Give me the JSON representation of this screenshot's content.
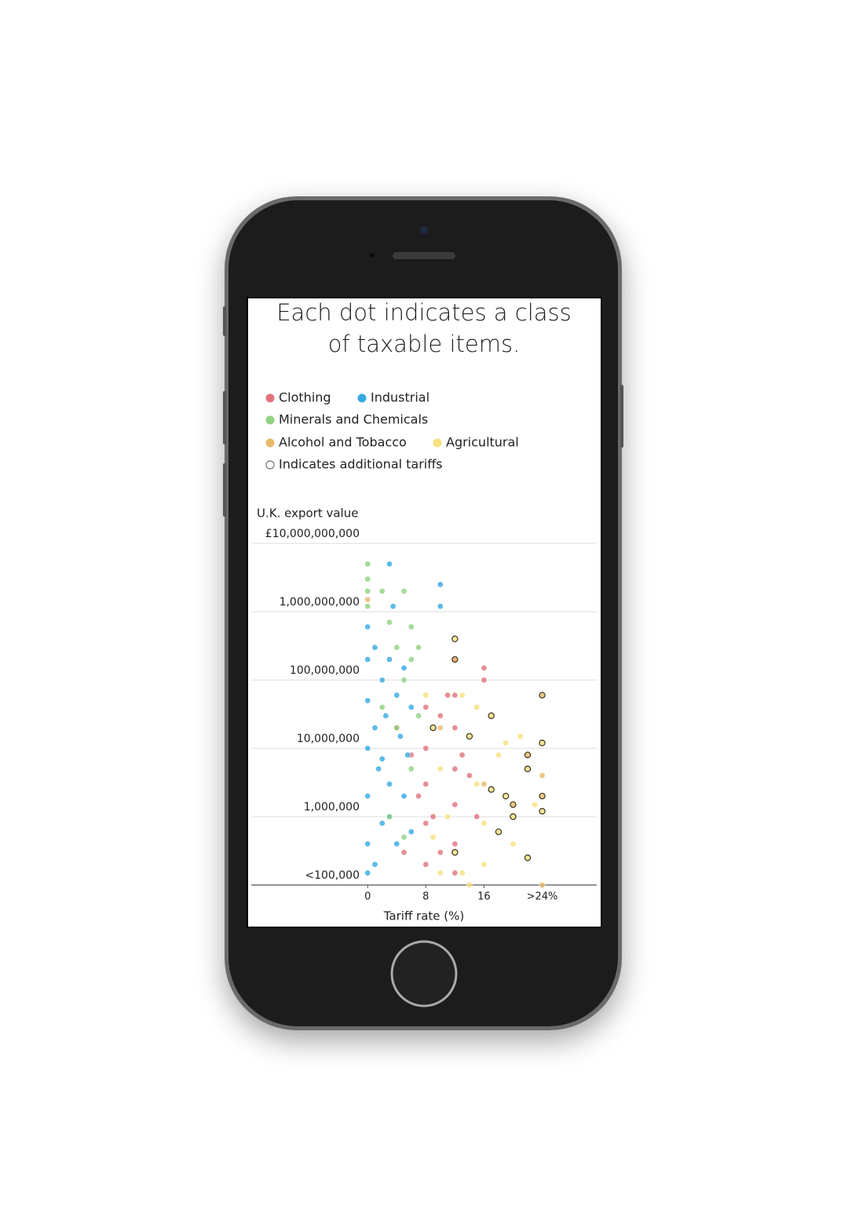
{
  "chart_data": {
    "type": "scatter",
    "title": "Each dot indicates a class of taxable items.",
    "y_label": "U.K. export value",
    "x_label": "Tariff rate (%)",
    "additional_tariffs_label": "Indicates additional tariffs",
    "log_y": true,
    "grid": true,
    "xlim": [
      -16,
      31.5
    ],
    "ylim": [
      100000,
      10000000000
    ],
    "xticks": [
      0,
      8,
      16,
      {
        "value": 24,
        "label": ">24%"
      }
    ],
    "yticks": [
      {
        "value": 100000,
        "label": "<100,000"
      },
      {
        "value": 1000000,
        "label": "1,000,000"
      },
      {
        "value": 10000000,
        "label": "10,000,000"
      },
      {
        "value": 100000000,
        "label": "100,000,000"
      },
      {
        "value": 1000000000,
        "label": "1,000,000,000"
      },
      {
        "value": 10000000000,
        "label": "£10,000,000,000"
      }
    ],
    "series": [
      {
        "name": "Clothing",
        "color": "#e0737c",
        "x": [
          8,
          8,
          8,
          8,
          8,
          12,
          12,
          12,
          12,
          12,
          12,
          12,
          10,
          6,
          7,
          11,
          9,
          14,
          16,
          16,
          15,
          5,
          4,
          13,
          10
        ],
        "values": [
          40000000,
          10000000,
          3000000,
          800000,
          200000,
          200000000,
          60000000,
          20000000,
          5000000,
          1500000,
          400000,
          150000,
          30000000,
          8000000,
          2000000,
          60000000,
          1000000,
          4000000,
          100000000,
          150000000,
          1000000,
          300000,
          20000000,
          8000000,
          300000
        ]
      },
      {
        "name": "Industrial",
        "color": "#36a9e1",
        "x": [
          0,
          0,
          0,
          0,
          0,
          0,
          0,
          1,
          1,
          1.5,
          2,
          2,
          2.5,
          3,
          3,
          3,
          3.5,
          4,
          4,
          4.5,
          5,
          5,
          5.5,
          6,
          6,
          10,
          10,
          1,
          2,
          3
        ],
        "values": [
          600000000,
          200000000,
          50000000,
          10000000,
          2000000,
          400000,
          150000,
          300000000,
          20000000,
          5000000,
          100000000,
          800000,
          30000000,
          5000000000,
          200000000,
          3000000,
          1200000000,
          60000000,
          400000,
          15000000,
          150000000,
          2000000,
          8000000,
          40000000,
          600000,
          2500000000,
          1200000000,
          200000,
          7000000,
          1000000
        ]
      },
      {
        "name": "Minerals and Chemicals",
        "color": "#8fd27f",
        "x": [
          0,
          0,
          0,
          2,
          5,
          0,
          3,
          4,
          6,
          6,
          5,
          7,
          2,
          4,
          6,
          3,
          7,
          5
        ],
        "values": [
          5000000000,
          3000000000,
          2000000000,
          2000000000,
          2000000000,
          1200000000,
          700000000,
          300000000,
          600000000,
          200000000,
          100000000,
          300000000,
          40000000,
          20000000,
          5000000,
          1000000,
          30000000,
          500000
        ]
      },
      {
        "name": "Alcohol and Tobacco",
        "color": "#e9b96a",
        "x": [
          0,
          24,
          24,
          24,
          24,
          16,
          20,
          22,
          10,
          12
        ],
        "values": [
          1500000000,
          60000000,
          4000000,
          2000000,
          100000,
          3000000,
          1500000,
          8000000,
          20000000,
          200000000
        ],
        "additional_tariffs": [
          false,
          true,
          false,
          true,
          false,
          false,
          true,
          true,
          false,
          true
        ]
      },
      {
        "name": "Agricultural",
        "color": "#f8e07c",
        "x": [
          8,
          9,
          10,
          11,
          12,
          13,
          14,
          15,
          16,
          17,
          18,
          19,
          20,
          21,
          22,
          23,
          24,
          12,
          10,
          14,
          16,
          18,
          20,
          15,
          17,
          19,
          9,
          13,
          22,
          24
        ],
        "values": [
          60000000,
          20000000,
          5000000,
          1000000,
          300000,
          60000000,
          15000000,
          3000000,
          800000,
          30000000,
          8000000,
          2000000,
          400000,
          15000000,
          5000000,
          1500000,
          12000000,
          400000000,
          150000,
          100000,
          200000,
          600000,
          1000000,
          40000000,
          2500000,
          12000000,
          500000,
          150000,
          250000,
          1200000
        ],
        "additional_tariffs": [
          false,
          true,
          false,
          false,
          true,
          false,
          true,
          false,
          false,
          true,
          false,
          true,
          false,
          false,
          true,
          false,
          true,
          true,
          false,
          false,
          false,
          true,
          true,
          false,
          true,
          false,
          false,
          false,
          true,
          true
        ]
      }
    ]
  }
}
